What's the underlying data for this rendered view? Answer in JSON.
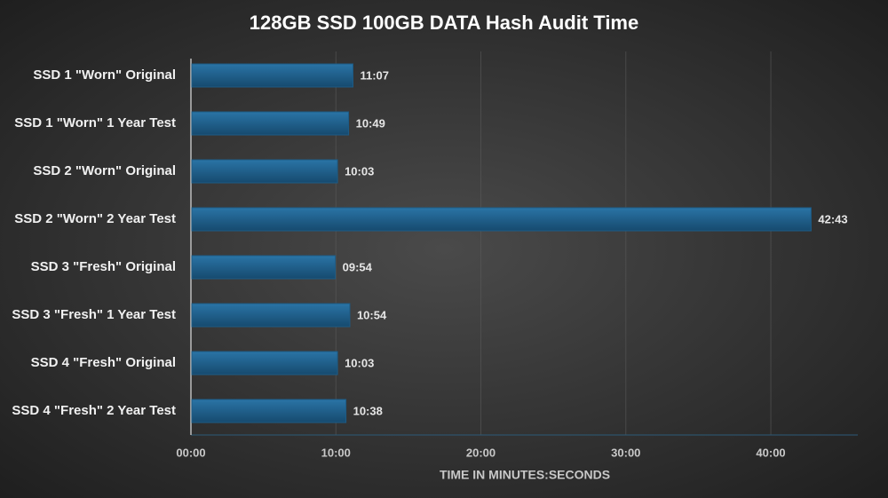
{
  "chart_data": {
    "type": "bar",
    "orientation": "horizontal",
    "title": "128GB SSD 100GB DATA Hash Audit Time",
    "x_label": "TIME IN MINUTES:SECONDS",
    "categories": [
      "SSD 1 \"Worn\" Original",
      "SSD 1 \"Worn\" 1 Year Test",
      "SSD 2 \"Worn\" Original",
      "SSD 2 \"Worn\" 2 Year Test",
      "SSD 3 \"Fresh\" Original",
      "SSD 3 \"Fresh\" 1 Year Test",
      "SSD 4 \"Fresh\" Original",
      "SSD 4 \"Fresh\" 2 Year Test"
    ],
    "values": [
      667,
      649,
      603,
      2563,
      594,
      654,
      603,
      638
    ],
    "value_labels": [
      "11:07",
      "10:49",
      "10:03",
      "42:43",
      "09:54",
      "10:54",
      "10:03",
      "10:38"
    ],
    "color": "#1d5b85",
    "xlim": [
      0,
      2760
    ],
    "xticks": [
      {
        "value": 0,
        "label": "00:00"
      },
      {
        "value": 600,
        "label": "10:00"
      },
      {
        "value": 1200,
        "label": "20:00"
      },
      {
        "value": 1800,
        "label": "30:00"
      },
      {
        "value": 2400,
        "label": "40:00"
      }
    ],
    "grid": true
  }
}
